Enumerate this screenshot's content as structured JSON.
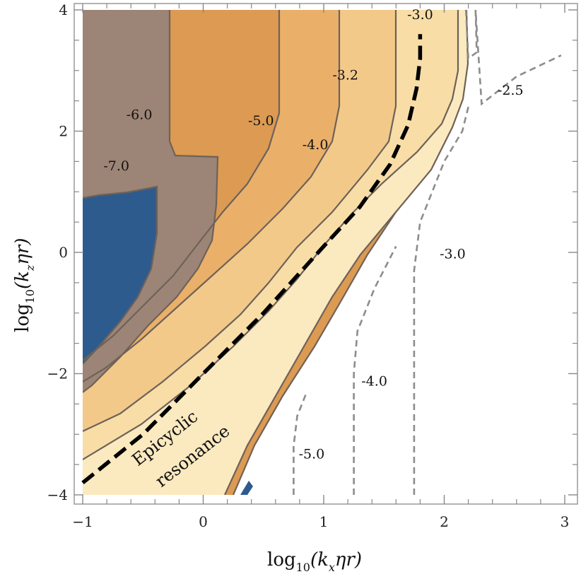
{
  "chart_data": {
    "type": "contour",
    "xlabel_parts": {
      "base": "log",
      "sub": "10",
      "arg": "(k",
      "argsub": "x",
      "rest": "ηr)"
    },
    "ylabel_parts": {
      "base": "log",
      "sub": "10",
      "arg": "(k",
      "argsub": "z",
      "rest": "ηr)"
    },
    "xlim": [
      -1,
      3
    ],
    "ylim": [
      -4,
      4
    ],
    "xticks": [
      -1,
      0,
      1,
      2,
      3
    ],
    "yticks": [
      -4,
      -2,
      0,
      2,
      4
    ],
    "xtick_labels": [
      "−1",
      "0",
      "1",
      "2",
      "3"
    ],
    "ytick_labels": [
      "−4",
      "−2",
      "0",
      "2",
      "4"
    ],
    "filled_contour_labels": [
      {
        "text": "-7.0",
        "x": -0.72,
        "y": 1.35
      },
      {
        "text": "-6.0",
        "x": -0.53,
        "y": 2.2
      },
      {
        "text": "-5.0",
        "x": 0.48,
        "y": 2.1
      },
      {
        "text": "-4.0",
        "x": 0.93,
        "y": 1.7
      },
      {
        "text": "-3.2",
        "x": 1.18,
        "y": 2.85
      },
      {
        "text": "-3.0",
        "x": 1.8,
        "y": 3.85
      }
    ],
    "dashed_contour_labels": [
      {
        "text": "-2.5",
        "x": 2.55,
        "y": 2.6
      },
      {
        "text": "-3.0",
        "x": 2.07,
        "y": -0.1
      },
      {
        "text": "-4.0",
        "x": 1.42,
        "y": -2.2
      },
      {
        "text": "-5.0",
        "x": 0.9,
        "y": -3.4
      }
    ],
    "annotations": [
      "Epicyclic",
      "resonance"
    ],
    "resonance_line": {
      "x": [
        -1.0,
        -0.5,
        0.0,
        0.5,
        1.0,
        1.3,
        1.55,
        1.7,
        1.77,
        1.8,
        1.8
      ],
      "y": [
        -3.8,
        -3.0,
        -2.0,
        -1.0,
        0.1,
        0.75,
        1.45,
        2.1,
        2.7,
        3.2,
        3.6
      ]
    },
    "dashed_contours": [
      {
        "level": "-5.0",
        "x": [
          0.75,
          0.75,
          0.78,
          0.86
        ],
        "y": [
          -4.0,
          -3.2,
          -2.7,
          -2.3
        ]
      },
      {
        "level": "-4.0",
        "x": [
          1.25,
          1.25,
          1.28,
          1.42,
          1.6
        ],
        "y": [
          -4.0,
          -2.0,
          -1.3,
          -0.6,
          0.1
        ]
      },
      {
        "level": "-3.0",
        "x": [
          1.75,
          1.75,
          1.8,
          1.92,
          2.0,
          2.15,
          2.2
        ],
        "y": [
          -4.0,
          -0.3,
          0.5,
          1.1,
          1.5,
          2.0,
          2.4
        ]
      },
      {
        "level": "-2.5",
        "x": [
          2.18,
          2.2,
          2.27,
          2.26,
          2.31,
          2.6,
          2.97
        ],
        "y": [
          4.0,
          3.2,
          3.3,
          4.0,
          2.45,
          2.9,
          3.25
        ]
      }
    ],
    "colors": {
      "blue": "#2e5b8e",
      "gray": "#9c8576",
      "orange_dark": "#dc9a52",
      "orange_mid": "#eab06a",
      "orange_light": "#f3c98a",
      "cream": "#f8dda7",
      "cream_light": "#fbe9c0",
      "contour_line": "#6e6258",
      "dashed_line": "#8c8c8c",
      "resonance_line": "#000000"
    }
  }
}
